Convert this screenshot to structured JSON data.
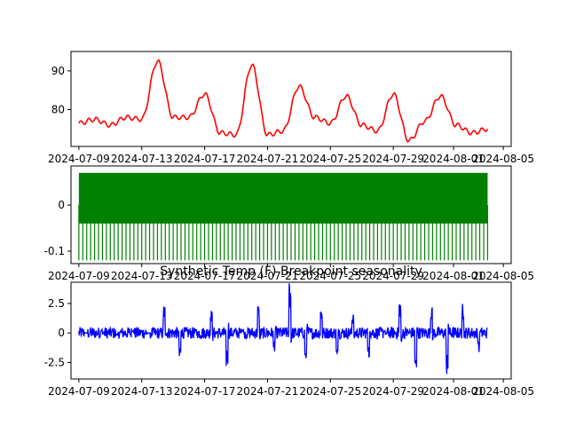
{
  "chart_data": [
    {
      "type": "line",
      "title": "",
      "xlabel": "",
      "ylabel": "",
      "color": "#ff0000",
      "x_tick_labels": [
        "2024-07-09",
        "2024-07-13",
        "2024-07-17",
        "2024-07-21",
        "2024-07-25",
        "2024-07-29",
        "2024-08-01",
        "2024-08-05"
      ],
      "y_ticks": [
        80,
        90
      ],
      "xlim": [
        "2024-07-08T12:00",
        "2024-08-05T12:00"
      ],
      "ylim": [
        70.5,
        95
      ],
      "grid": false,
      "series": [
        {
          "x": [
            "2024-07-09",
            "2024-07-10",
            "2024-07-11",
            "2024-07-12",
            "2024-07-13",
            "2024-07-14",
            "2024-07-15",
            "2024-07-16",
            "2024-07-17",
            "2024-07-18",
            "2024-07-19",
            "2024-07-20",
            "2024-07-21",
            "2024-07-22",
            "2024-07-23",
            "2024-07-24",
            "2024-07-25",
            "2024-07-26",
            "2024-07-27",
            "2024-07-28",
            "2024-07-29",
            "2024-07-30",
            "2024-07-31",
            "2024-08-01",
            "2024-08-02",
            "2024-08-03",
            "2024-08-04"
          ],
          "values": [
            76.5,
            77.5,
            76.0,
            78.0,
            77.5,
            92.5,
            78.0,
            78.0,
            84.0,
            74.0,
            73.5,
            91.5,
            73.5,
            74.5,
            86.0,
            78.0,
            76.5,
            83.5,
            76.0,
            74.5,
            84.0,
            72.0,
            77.0,
            83.5,
            76.0,
            74.0,
            75.0
          ]
        }
      ]
    },
    {
      "type": "line",
      "title": "",
      "xlabel": "",
      "ylabel": "",
      "color": "#008000",
      "x_tick_labels": [
        "2024-07-09",
        "2024-07-13",
        "2024-07-17",
        "2024-07-21",
        "2024-07-25",
        "2024-07-29",
        "2024-08-01",
        "2024-08-05"
      ],
      "y_ticks": [
        0.0,
        -0.1
      ],
      "xlim": [
        "2024-07-08T12:00",
        "2024-08-05T12:00"
      ],
      "ylim": [
        -0.127,
        0.085
      ],
      "grid": false,
      "series": [
        {
          "pattern": "daily",
          "x_start": "2024-07-09",
          "x_end": "2024-08-04",
          "max": 0.07,
          "min": -0.12,
          "baseline": 0.0
        }
      ]
    },
    {
      "type": "line",
      "title": "Synthetic Temp (F) Breakpoint seasonality",
      "xlabel": "",
      "ylabel": "",
      "color": "#0000ff",
      "x_tick_labels": [
        "2024-07-09",
        "2024-07-13",
        "2024-07-17",
        "2024-07-21",
        "2024-07-25",
        "2024-07-29",
        "2024-08-01",
        "2024-08-05"
      ],
      "y_ticks": [
        2.5,
        0.0,
        -2.5
      ],
      "xlim": [
        "2024-07-08T12:00",
        "2024-08-05T12:00"
      ],
      "ylim": [
        -3.9,
        4.3
      ],
      "grid": false,
      "series": [
        {
          "x": [
            "2024-07-09",
            "2024-07-10",
            "2024-07-11",
            "2024-07-12",
            "2024-07-13",
            "2024-07-14",
            "2024-07-15",
            "2024-07-16",
            "2024-07-17",
            "2024-07-18",
            "2024-07-19",
            "2024-07-20",
            "2024-07-21",
            "2024-07-22",
            "2024-07-23",
            "2024-07-24",
            "2024-07-25",
            "2024-07-26",
            "2024-07-27",
            "2024-07-28",
            "2024-07-29",
            "2024-07-30",
            "2024-07-31",
            "2024-08-01",
            "2024-08-02",
            "2024-08-03",
            "2024-08-04"
          ],
          "values": [
            0.0,
            0.3,
            -0.2,
            0.2,
            0.0,
            2.2,
            -1.8,
            0.3,
            1.8,
            -2.6,
            0.3,
            2.2,
            -1.5,
            4.0,
            -2.0,
            2.0,
            -1.8,
            1.5,
            -2.3,
            0.2,
            2.6,
            -3.0,
            2.3,
            -3.4,
            2.3,
            -1.5,
            0.4
          ]
        }
      ]
    }
  ]
}
